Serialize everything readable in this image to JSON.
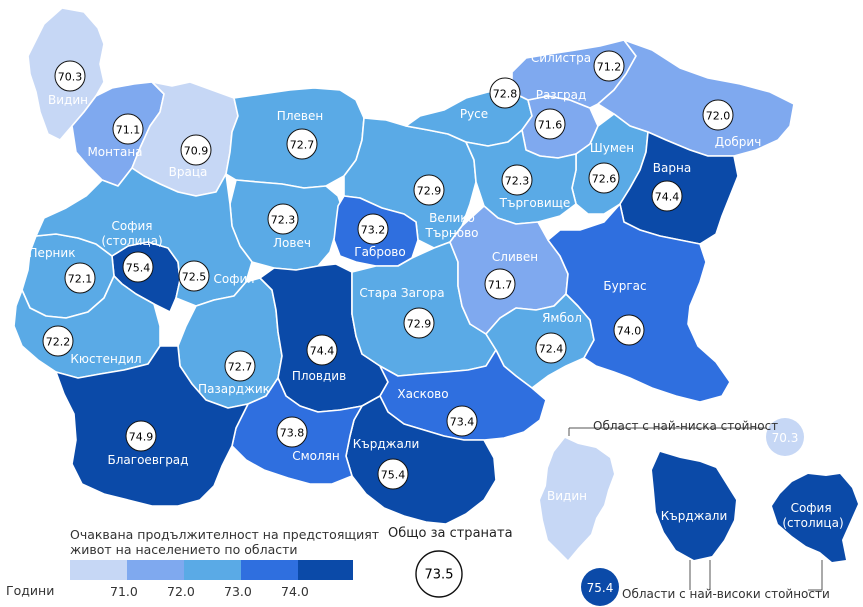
{
  "legend": {
    "title": "Очаквана продължителност на предстоящият живот на населението по области",
    "unit_label": "Години",
    "ticks": [
      "71.0",
      "72.0",
      "73.0",
      "74.0"
    ],
    "colors": [
      "#c6d7f5",
      "#7fa9ef",
      "#5aaae6",
      "#2f6fdf",
      "#0b4aa8"
    ]
  },
  "national": {
    "label": "Общо за страната",
    "value": "73.5"
  },
  "inset": {
    "low_label": "Област с най-ниска стойност",
    "low_value": "70.3",
    "high_label": "Области с най-високи стойности",
    "high_value": "75.4",
    "regions": [
      "Видин",
      "Кърджали",
      "София (столица)"
    ]
  },
  "regions": [
    {
      "name": "Видин",
      "value": "70.3",
      "color": "#c6d7f5"
    },
    {
      "name": "Монтана",
      "value": "71.1",
      "color": "#7fa9ef"
    },
    {
      "name": "Враца",
      "value": "70.9",
      "color": "#c6d7f5"
    },
    {
      "name": "Плевен",
      "value": "72.7",
      "color": "#5aaae6"
    },
    {
      "name": "Ловеч",
      "value": "72.3",
      "color": "#5aaae6"
    },
    {
      "name": "Велико Търново",
      "value": "72.9",
      "color": "#5aaae6"
    },
    {
      "name": "Габрово",
      "value": "73.2",
      "color": "#2f6fdf"
    },
    {
      "name": "Русе",
      "value": "72.8",
      "color": "#5aaae6"
    },
    {
      "name": "Разград",
      "value": "71.6",
      "color": "#7fa9ef"
    },
    {
      "name": "Силистра",
      "value": "71.2",
      "color": "#7fa9ef"
    },
    {
      "name": "Добрич",
      "value": "72.0",
      "color": "#7fa9ef"
    },
    {
      "name": "Шумен",
      "value": "72.6",
      "color": "#5aaae6"
    },
    {
      "name": "Търговище",
      "value": "72.3",
      "color": "#5aaae6"
    },
    {
      "name": "Варна",
      "value": "74.4",
      "color": "#0b4aa8"
    },
    {
      "name": "София (столица)",
      "value": "75.4",
      "color": "#0b4aa8"
    },
    {
      "name": "Перник",
      "value": "72.1",
      "color": "#5aaae6"
    },
    {
      "name": "София",
      "value": "72.5",
      "color": "#5aaae6"
    },
    {
      "name": "Кюстендил",
      "value": "72.2",
      "color": "#5aaae6"
    },
    {
      "name": "Пазарджик",
      "value": "72.7",
      "color": "#5aaae6"
    },
    {
      "name": "Пловдив",
      "value": "74.4",
      "color": "#0b4aa8"
    },
    {
      "name": "Стара Загора",
      "value": "72.9",
      "color": "#5aaae6"
    },
    {
      "name": "Сливен",
      "value": "71.7",
      "color": "#7fa9ef"
    },
    {
      "name": "Ямбол",
      "value": "72.4",
      "color": "#5aaae6"
    },
    {
      "name": "Бургас",
      "value": "74.0",
      "color": "#2f6fdf"
    },
    {
      "name": "Хасково",
      "value": "73.4",
      "color": "#2f6fdf"
    },
    {
      "name": "Кърджали",
      "value": "75.4",
      "color": "#0b4aa8"
    },
    {
      "name": "Смолян",
      "value": "73.8",
      "color": "#2f6fdf"
    },
    {
      "name": "Благоевград",
      "value": "74.9",
      "color": "#0b4aa8"
    }
  ]
}
